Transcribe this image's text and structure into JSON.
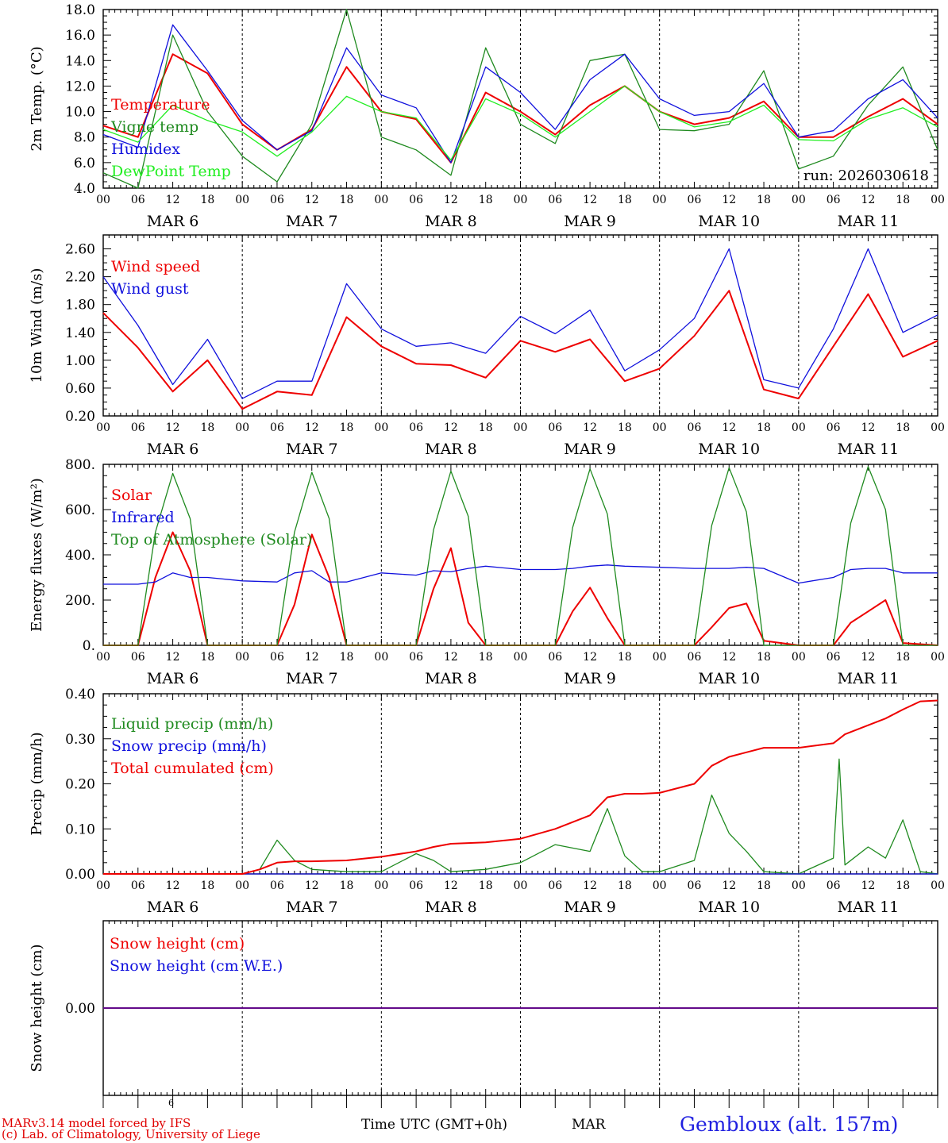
{
  "colors": {
    "red": "#ee0000",
    "green": "#1f8a1f",
    "blue": "#1010dd",
    "lightgreen": "#22ee22",
    "axis": "#000000"
  },
  "x_ticks": [
    "00",
    "06",
    "12",
    "18",
    "00",
    "06",
    "12",
    "18",
    "00",
    "06",
    "12",
    "18",
    "00",
    "06",
    "12",
    "18",
    "00",
    "06",
    "12",
    "18",
    "00",
    "06",
    "12",
    "18",
    "00"
  ],
  "day_labels": [
    "MAR  6",
    "MAR  7",
    "MAR  8",
    "MAR  9",
    "MAR 10",
    "MAR 11"
  ],
  "footer": {
    "credit_line1": "MARv3.14 model forced by IFS",
    "credit_line2": "(c) Lab. of Climatology, University of Liege",
    "small_label": "6",
    "x_title": "Time UTC (GMT+0h)",
    "x_month": "MAR",
    "station": "Gembloux (alt. 157m)"
  },
  "chart_data": [
    {
      "type": "line",
      "ylabel": "2m Temp. (°C)",
      "ylim": [
        4.0,
        18.0
      ],
      "yticks": [
        "4.0",
        "6.0",
        "8.0",
        "10.0",
        "12.0",
        "14.0",
        "16.0",
        "18.0"
      ],
      "annotation": "run: 2026030618",
      "x": [
        0,
        6,
        12,
        18,
        24,
        30,
        36,
        42,
        48,
        54,
        60,
        66,
        72,
        78,
        84,
        90,
        96,
        102,
        108,
        114,
        120,
        126,
        132,
        138,
        144
      ],
      "series": [
        {
          "name": "Temperature",
          "color": "red",
          "values": [
            8.9,
            8.0,
            14.5,
            13.0,
            9.0,
            7.0,
            8.6,
            13.5,
            10.0,
            9.4,
            6.0,
            11.5,
            10.0,
            8.2,
            10.5,
            12.0,
            10.0,
            9.0,
            9.5,
            10.8,
            8.0,
            8.0,
            9.6,
            11.0,
            9.0
          ]
        },
        {
          "name": "Vigne temp",
          "color": "green",
          "values": [
            5.2,
            4.0,
            16.0,
            10.0,
            6.5,
            4.5,
            9.0,
            18.0,
            8.0,
            7.0,
            5.0,
            15.0,
            9.0,
            7.5,
            14.0,
            14.5,
            8.6,
            8.5,
            9.0,
            13.2,
            5.5,
            6.5,
            10.5,
            13.5,
            7.0
          ]
        },
        {
          "name": "Humidex",
          "color": "blue",
          "values": [
            8.2,
            7.2,
            16.8,
            13.2,
            9.3,
            7.0,
            8.5,
            15.0,
            11.3,
            10.3,
            6.0,
            13.5,
            11.5,
            8.6,
            12.5,
            14.5,
            11.0,
            9.7,
            10.0,
            12.2,
            8.0,
            8.5,
            11.0,
            12.5,
            9.5
          ]
        },
        {
          "name": "DewPoint Temp",
          "color": "lightgreen",
          "values": [
            8.6,
            7.6,
            10.5,
            9.3,
            8.4,
            6.5,
            8.4,
            11.2,
            10.0,
            9.5,
            6.2,
            11.0,
            9.8,
            8.0,
            10.0,
            12.0,
            10.0,
            8.8,
            9.2,
            10.5,
            7.8,
            7.7,
            9.4,
            10.3,
            8.8
          ]
        }
      ]
    },
    {
      "type": "line",
      "ylabel": "10m Wind (m/s)",
      "ylim": [
        0.2,
        2.8
      ],
      "yticks": [
        "0.20",
        "0.60",
        "1.00",
        "1.40",
        "1.80",
        "2.20",
        "2.60"
      ],
      "x": [
        0,
        6,
        12,
        18,
        24,
        30,
        36,
        42,
        48,
        54,
        60,
        66,
        72,
        78,
        84,
        90,
        96,
        102,
        108,
        114,
        120,
        126,
        132,
        138,
        144
      ],
      "series": [
        {
          "name": "Wind speed",
          "color": "red",
          "values": [
            1.68,
            1.18,
            0.55,
            1.0,
            0.3,
            0.55,
            0.5,
            1.62,
            1.2,
            0.95,
            0.93,
            0.75,
            1.28,
            1.12,
            1.3,
            0.7,
            0.88,
            1.35,
            2.0,
            0.58,
            0.45,
            1.2,
            1.95,
            1.05,
            1.28
          ]
        },
        {
          "name": "Wind gust",
          "color": "blue",
          "values": [
            2.2,
            1.5,
            0.65,
            1.3,
            0.45,
            0.7,
            0.7,
            2.1,
            1.45,
            1.2,
            1.25,
            1.1,
            1.63,
            1.38,
            1.72,
            0.85,
            1.15,
            1.6,
            2.6,
            0.72,
            0.6,
            1.45,
            2.6,
            1.4,
            1.65
          ]
        }
      ]
    },
    {
      "type": "line",
      "ylabel": "Energy fluxes (W/m²)",
      "ylim": [
        0,
        800
      ],
      "yticks": [
        "0.",
        "200.",
        "400.",
        "600.",
        "800."
      ],
      "x": [
        0,
        6,
        9,
        12,
        15,
        18,
        24,
        30,
        33,
        36,
        39,
        42,
        48,
        54,
        57,
        60,
        63,
        66,
        72,
        78,
        81,
        84,
        87,
        90,
        96,
        102,
        105,
        108,
        111,
        114,
        120,
        126,
        129,
        132,
        135,
        138,
        144
      ],
      "series": [
        {
          "name": "Solar",
          "color": "red",
          "values": [
            0,
            0,
            300,
            500,
            330,
            0,
            0,
            0,
            180,
            490,
            300,
            0,
            0,
            0,
            250,
            430,
            100,
            0,
            0,
            0,
            150,
            255,
            120,
            0,
            0,
            0,
            80,
            165,
            185,
            20,
            0,
            0,
            100,
            150,
            200,
            10,
            0
          ]
        },
        {
          "name": "Infrared",
          "color": "blue",
          "values": [
            270,
            270,
            280,
            320,
            300,
            300,
            285,
            280,
            320,
            330,
            280,
            280,
            320,
            310,
            330,
            325,
            340,
            350,
            335,
            335,
            340,
            350,
            355,
            350,
            345,
            340,
            340,
            340,
            345,
            340,
            275,
            300,
            335,
            340,
            340,
            320,
            320
          ]
        },
        {
          "name": "Top of Atmosphere (Solar)",
          "color": "green",
          "values": [
            0,
            0,
            500,
            760,
            560,
            0,
            0,
            0,
            500,
            765,
            560,
            0,
            0,
            0,
            510,
            770,
            570,
            0,
            0,
            0,
            520,
            780,
            580,
            0,
            0,
            0,
            530,
            785,
            590,
            0,
            0,
            0,
            540,
            790,
            600,
            0,
            0
          ]
        }
      ]
    },
    {
      "type": "line",
      "ylabel": "Precip (mm/h)",
      "ylim": [
        0.0,
        0.4
      ],
      "yticks": [
        "0.00",
        "0.10",
        "0.20",
        "0.30",
        "0.40"
      ],
      "x": [
        0,
        6,
        12,
        18,
        24,
        27,
        30,
        33,
        36,
        42,
        48,
        54,
        57,
        60,
        66,
        72,
        78,
        84,
        87,
        90,
        93,
        96,
        102,
        105,
        108,
        111,
        114,
        120,
        126,
        127,
        128,
        132,
        135,
        138,
        141,
        144
      ],
      "series": [
        {
          "name": "Liquid precip (mm/h)",
          "color": "green",
          "values": [
            0,
            0,
            0,
            0,
            0,
            0.01,
            0.075,
            0.03,
            0.01,
            0.005,
            0.005,
            0.045,
            0.03,
            0.005,
            0.01,
            0.025,
            0.065,
            0.05,
            0.145,
            0.04,
            0.005,
            0.005,
            0.03,
            0.175,
            0.09,
            0.05,
            0.005,
            0,
            0.035,
            0.255,
            0.02,
            0.06,
            0.035,
            0.12,
            0.005,
            0
          ]
        },
        {
          "name": "Snow precip (mm/h)",
          "color": "blue",
          "values": [
            0,
            0,
            0,
            0,
            0,
            0,
            0,
            0,
            0,
            0,
            0,
            0,
            0,
            0,
            0,
            0,
            0,
            0,
            0,
            0,
            0,
            0,
            0,
            0,
            0,
            0,
            0,
            0,
            0,
            0,
            0,
            0,
            0,
            0,
            0,
            0
          ]
        },
        {
          "name": "Total cumulated (cm)",
          "color": "red",
          "values": [
            0,
            0,
            0,
            0,
            0,
            0.01,
            0.025,
            0.028,
            0.028,
            0.03,
            0.038,
            0.05,
            0.06,
            0.067,
            0.07,
            0.078,
            0.1,
            0.13,
            0.17,
            0.178,
            0.178,
            0.18,
            0.2,
            0.24,
            0.26,
            0.27,
            0.28,
            0.28,
            0.29,
            0.3,
            0.31,
            0.33,
            0.345,
            0.365,
            0.383,
            0.385
          ]
        }
      ]
    },
    {
      "type": "line",
      "ylabel": "Snow height (cm)",
      "ylim": [
        -1.0,
        1.0
      ],
      "yticks": [
        "0.00"
      ],
      "x": [
        0,
        144
      ],
      "series": [
        {
          "name": "Snow height (cm)",
          "color": "red",
          "values": [
            0,
            0
          ]
        },
        {
          "name": "Snow height (cm W.E.)",
          "color": "blue",
          "values": [
            0,
            0
          ]
        }
      ]
    }
  ]
}
